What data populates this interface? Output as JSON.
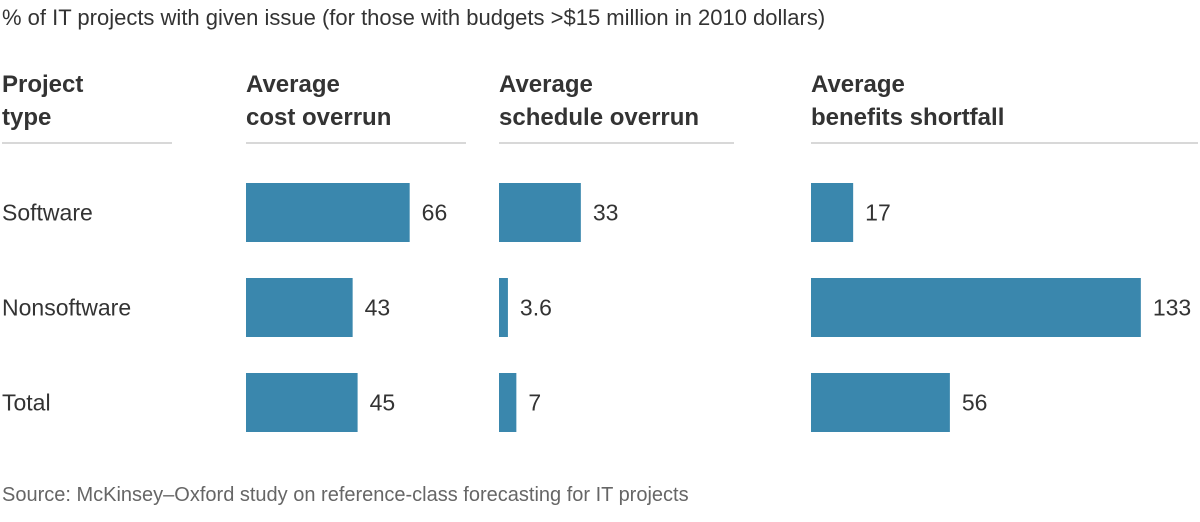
{
  "colors": {
    "bar": "#3a87ad",
    "text": "#333333",
    "muted": "#666666",
    "rule": "#cccccc"
  },
  "chart_data": {
    "type": "bar",
    "orientation": "horizontal",
    "title": "% of IT projects with given issue (for those with budgets >$15 million in 2010 dollars)",
    "row_header": [
      "Project",
      "type"
    ],
    "categories": [
      "Software",
      "Nonsoftware",
      "Total"
    ],
    "series": [
      {
        "name": "Average cost overrun",
        "header": [
          "Average",
          "cost overrun"
        ],
        "values": [
          66,
          43,
          45
        ],
        "labels": [
          "66",
          "43",
          "45"
        ]
      },
      {
        "name": "Average schedule overrun",
        "header": [
          "Average",
          "schedule overrun"
        ],
        "values": [
          33,
          3.6,
          7
        ],
        "labels": [
          "33",
          "3.6",
          "7"
        ]
      },
      {
        "name": "Average benefits shortfall",
        "header": [
          "Average",
          "benefits shortfall"
        ],
        "values": [
          17,
          133,
          56
        ],
        "labels": [
          "17",
          "133",
          "56"
        ]
      }
    ],
    "source": "Source: McKinsey–Oxford study on reference-class forecasting for IT projects"
  }
}
